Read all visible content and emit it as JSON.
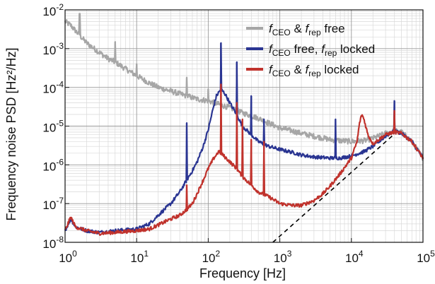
{
  "chart_data": {
    "type": "line",
    "xlabel": "Frequency [Hz]",
    "ylabel": "Frequency noise PSD [Hz²/Hz]",
    "xscale": "log",
    "yscale": "log",
    "xlim": [
      1,
      100000
    ],
    "ylim": [
      1e-08,
      0.01
    ],
    "grid": true,
    "legend_position": "top-right",
    "x_ticks": [
      {
        "base": "10",
        "exp": "0"
      },
      {
        "base": "10",
        "exp": "1"
      },
      {
        "base": "10",
        "exp": "2"
      },
      {
        "base": "10",
        "exp": "3"
      },
      {
        "base": "10",
        "exp": "4"
      },
      {
        "base": "10",
        "exp": "5"
      }
    ],
    "y_ticks": [
      {
        "base": "10",
        "exp": "-8"
      },
      {
        "base": "10",
        "exp": "-7"
      },
      {
        "base": "10",
        "exp": "-6"
      },
      {
        "base": "10",
        "exp": "-5"
      },
      {
        "base": "10",
        "exp": "-4"
      },
      {
        "base": "10",
        "exp": "-3"
      },
      {
        "base": "10",
        "exp": "-2"
      }
    ],
    "series": [
      {
        "legend": {
          "f1": "f",
          "s1": "CEO",
          "mid": " & ",
          "f2": "f",
          "s2": "rep",
          "tail": " free"
        },
        "color": "#a6a6a6",
        "points": [
          [
            1,
            0.005
          ],
          [
            1.2,
            0.004
          ],
          [
            1.5,
            0.0025
          ],
          [
            2,
            0.0014
          ],
          [
            3,
            0.0008
          ],
          [
            4,
            0.00055
          ],
          [
            5,
            0.00045
          ],
          [
            7,
            0.0003
          ],
          [
            10,
            0.0002
          ],
          [
            15,
            0.00013
          ],
          [
            20,
            0.0001
          ],
          [
            30,
            8e-05
          ],
          [
            50,
            6e-05
          ],
          [
            70,
            5e-05
          ],
          [
            100,
            4.5e-05
          ],
          [
            150,
            3.5e-05
          ],
          [
            200,
            3e-05
          ],
          [
            300,
            2.2e-05
          ],
          [
            500,
            1.6e-05
          ],
          [
            700,
            1.2e-05
          ],
          [
            1000,
            9e-06
          ],
          [
            1500,
            7.5e-06
          ],
          [
            2000,
            6.5e-06
          ],
          [
            3000,
            5.5e-06
          ],
          [
            5000,
            4.5e-06
          ],
          [
            7000,
            4.2e-06
          ],
          [
            10000,
            4e-06
          ],
          [
            15000,
            4.2e-06
          ],
          [
            20000,
            4.8e-06
          ],
          [
            30000,
            6.5e-06
          ],
          [
            40000,
            7.5e-06
          ],
          [
            50000,
            7e-06
          ],
          [
            70000,
            4e-06
          ],
          [
            100000,
            1.5e-06
          ]
        ],
        "spikes": [
          [
            1.6,
            0.008
          ],
          [
            5,
            0.0015
          ],
          [
            10,
            0.0004
          ],
          [
            50,
            0.00018
          ],
          [
            100,
            9e-05
          ],
          [
            250,
            3e-05
          ],
          [
            400,
            2e-05
          ]
        ]
      },
      {
        "legend": {
          "f1": "f",
          "s1": "CEO",
          "mid": " free, ",
          "f2": "f",
          "s2": "rep",
          "tail": " locked"
        },
        "color": "#2a3592",
        "points": [
          [
            1,
            2e-08
          ],
          [
            1.2,
            4e-08
          ],
          [
            1.4,
            2.5e-08
          ],
          [
            2,
            2e-08
          ],
          [
            3,
            1.8e-08
          ],
          [
            5,
            2e-08
          ],
          [
            10,
            2.2e-08
          ],
          [
            15,
            3e-08
          ],
          [
            20,
            5e-08
          ],
          [
            30,
            1e-07
          ],
          [
            40,
            2e-07
          ],
          [
            50,
            4e-07
          ],
          [
            60,
            7e-07
          ],
          [
            70,
            1.2e-06
          ],
          [
            85,
            3e-06
          ],
          [
            100,
            8e-06
          ],
          [
            115,
            2.5e-05
          ],
          [
            130,
            6e-05
          ],
          [
            150,
            9e-05
          ],
          [
            170,
            7e-05
          ],
          [
            200,
            4e-05
          ],
          [
            250,
            2e-05
          ],
          [
            300,
            1e-05
          ],
          [
            400,
            6e-06
          ],
          [
            500,
            4e-06
          ],
          [
            700,
            3e-06
          ],
          [
            1000,
            2.5e-06
          ],
          [
            1500,
            2.1e-06
          ],
          [
            2000,
            1.8e-06
          ],
          [
            3000,
            1.6e-06
          ],
          [
            5000,
            1.5e-06
          ],
          [
            7000,
            1.5e-06
          ],
          [
            10000,
            1.7e-06
          ],
          [
            15000,
            2.2e-06
          ],
          [
            20000,
            3e-06
          ],
          [
            30000,
            5.5e-06
          ],
          [
            40000,
            7.5e-06
          ],
          [
            50000,
            6.5e-06
          ],
          [
            70000,
            4e-06
          ],
          [
            100000,
            1.5e-06
          ]
        ],
        "spikes": [
          [
            50,
            1.2e-05
          ],
          [
            150,
            0.0014
          ],
          [
            250,
            0.00045
          ],
          [
            400,
            6e-05
          ],
          [
            600,
            1.5e-05
          ],
          [
            6000,
            1.5e-05
          ],
          [
            40000,
            4.5e-05
          ]
        ]
      },
      {
        "legend": {
          "f1": "f",
          "s1": "CEO",
          "mid": " & ",
          "f2": "f",
          "s2": "rep",
          "tail": " locked"
        },
        "color": "#c0322c",
        "points": [
          [
            1,
            2e-08
          ],
          [
            1.2,
            4.5e-08
          ],
          [
            1.4,
            2.5e-08
          ],
          [
            2,
            2e-08
          ],
          [
            3,
            1.7e-08
          ],
          [
            5,
            1.8e-08
          ],
          [
            10,
            2e-08
          ],
          [
            15,
            2.2e-08
          ],
          [
            20,
            2.8e-08
          ],
          [
            30,
            4e-08
          ],
          [
            40,
            5e-08
          ],
          [
            50,
            7e-08
          ],
          [
            60,
            1e-07
          ],
          [
            70,
            1.8e-07
          ],
          [
            85,
            4e-07
          ],
          [
            100,
            8e-07
          ],
          [
            120,
            1.5e-06
          ],
          [
            140,
            2.2e-06
          ],
          [
            160,
            1.8e-06
          ],
          [
            200,
            1.2e-06
          ],
          [
            250,
            8e-07
          ],
          [
            300,
            5e-07
          ],
          [
            400,
            3e-07
          ],
          [
            500,
            2e-07
          ],
          [
            700,
            1.5e-07
          ],
          [
            1000,
            1e-07
          ],
          [
            1500,
            9e-08
          ],
          [
            2000,
            9e-08
          ],
          [
            3000,
            1.2e-07
          ],
          [
            4000,
            1.8e-07
          ],
          [
            5000,
            2.8e-07
          ],
          [
            7000,
            6e-07
          ],
          [
            10000,
            1.5e-06
          ],
          [
            12000,
            4e-06
          ],
          [
            13000,
            1.2e-05
          ],
          [
            14000,
            2e-05
          ],
          [
            15000,
            1.5e-05
          ],
          [
            17000,
            6e-06
          ],
          [
            20000,
            3.5e-06
          ],
          [
            30000,
            6e-06
          ],
          [
            40000,
            7e-06
          ],
          [
            50000,
            6.5e-06
          ],
          [
            70000,
            4e-06
          ],
          [
            100000,
            1.5e-06
          ]
        ],
        "spikes": [
          [
            50,
            3e-07
          ],
          [
            150,
            0.00012
          ],
          [
            250,
            4e-05
          ],
          [
            300,
            1.5e-05
          ],
          [
            400,
            4.5e-06
          ],
          [
            600,
            4e-06
          ],
          [
            40000,
            2.5e-05
          ]
        ]
      }
    ],
    "reference_line": {
      "style": "dashed",
      "color": "#000000",
      "points": [
        [
          800,
          1e-08
        ],
        [
          40000,
          6.3e-06
        ]
      ]
    }
  }
}
